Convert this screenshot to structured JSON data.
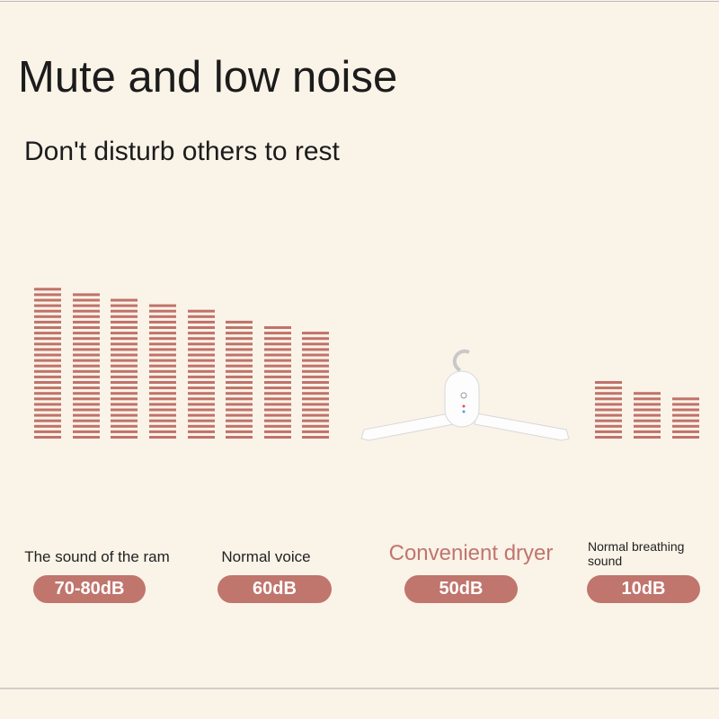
{
  "header": {
    "title": "Mute and low noise",
    "subtitle": "Don't disturb others to rest"
  },
  "items": [
    {
      "label": "The sound of the ram",
      "level": "70-80dB"
    },
    {
      "label": "Normal voice",
      "level": "60dB"
    },
    {
      "label": "Convenient dryer",
      "level": "50dB"
    },
    {
      "label": "Normal breathing sound",
      "level": "10dB"
    }
  ]
}
